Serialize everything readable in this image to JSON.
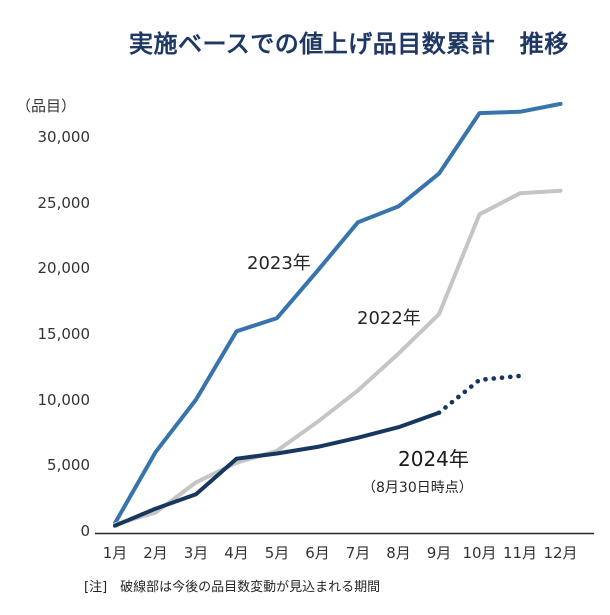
{
  "title": "実施ベースでの値上げ品目数累計　推移",
  "note": "[注]　破線部は今後の品目数変動が見込まれる期間",
  "colors": {
    "title_text": "#1f3864",
    "axis_line": "#262626",
    "tick_text": "#333333",
    "series_2023": "#3874ac",
    "series_2022": "#c5c5c5",
    "series_2024": "#17375e"
  },
  "chart_data": {
    "type": "line",
    "title": "実施ベースでの値上げ品目数累計　推移",
    "y_unit_label": "（品目）",
    "xlabel": "",
    "ylabel": "品目",
    "grid": false,
    "legend_position": "inline-labels",
    "ylim": [
      0,
      33000
    ],
    "y_ticks": [
      0,
      5000,
      10000,
      15000,
      20000,
      25000,
      30000
    ],
    "categories": [
      "1月",
      "2月",
      "3月",
      "4月",
      "5月",
      "6月",
      "7月",
      "8月",
      "9月",
      "10月",
      "11月",
      "12月"
    ],
    "series": [
      {
        "name": "2023年",
        "color": "#3874ac",
        "style": "solid",
        "values": [
          600,
          6000,
          10000,
          15200,
          16200,
          19800,
          23500,
          24700,
          27200,
          31800,
          31900,
          32500
        ]
      },
      {
        "name": "2022年",
        "color": "#c5c5c5",
        "style": "solid",
        "values": [
          500,
          1400,
          3700,
          5200,
          6100,
          8300,
          10700,
          13500,
          16500,
          24100,
          25700,
          25900
        ]
      },
      {
        "name": "2024年",
        "sub_label": "（8月30日時点）",
        "color": "#17375e",
        "style": "solid-then-dotted",
        "dashed_from_index": 8,
        "dashed_note": "9月以降は破線（見込み）",
        "values": [
          400,
          1700,
          2800,
          5500,
          5900,
          6400,
          7100,
          7900,
          9000,
          11500,
          11800
        ]
      }
    ]
  }
}
